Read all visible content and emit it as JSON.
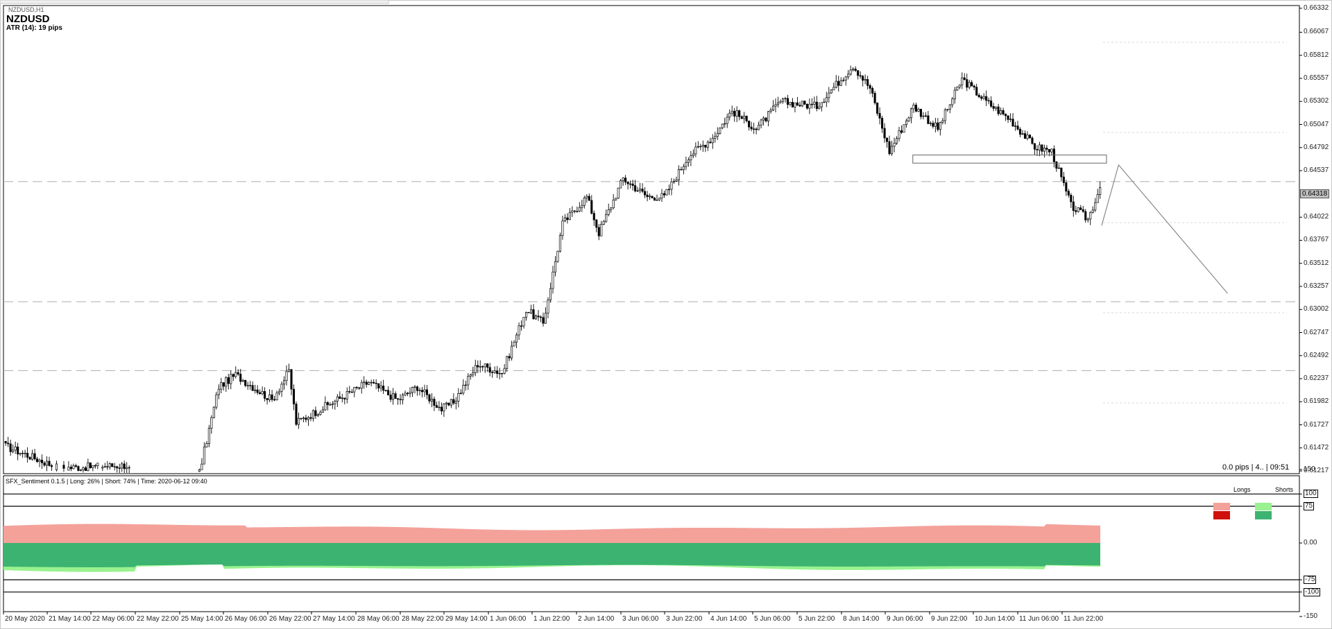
{
  "window": {
    "tab_title": "NZDUSD,H1"
  },
  "symbol": "NZDUSD",
  "atr_text": "ATR (14): 19 pips",
  "status_text": "0.0 pips | 4.. | 09:51",
  "current_price": "0.64318",
  "colors": {
    "bull": "#ffffff",
    "bear": "#000000",
    "longs_light": "#f4a19a",
    "longs_dark": "#d0100b",
    "shorts_light": "#99f28f",
    "shorts_dark": "#3cb371"
  },
  "indicator": {
    "title": "SFX_Sentiment 0.1.5 | Long: 26% | Short: 74% | Time: 2020-06-12 09:40",
    "legend": [
      {
        "label": "Longs"
      },
      {
        "label": "Shorts"
      }
    ],
    "y_ticks": [
      "150",
      "100",
      "75",
      "0.00",
      "-75",
      "-100",
      "-150"
    ],
    "levels": [
      "100",
      "75",
      "-75",
      "-100"
    ]
  },
  "chart_data": {
    "type": "candlestick",
    "title": "NZDUSD,H1",
    "y_ticks": [
      "0.66332",
      "0.66067",
      "0.65812",
      "0.65557",
      "0.65302",
      "0.65047",
      "0.64792",
      "0.64537",
      "0.64022",
      "0.63767",
      "0.63512",
      "0.63257",
      "0.63002",
      "0.62747",
      "0.62492",
      "0.62237",
      "0.61982",
      "0.61727",
      "0.61472",
      "0.61217"
    ],
    "ylim": [
      0.61187,
      0.66362
    ],
    "x_ticks": [
      "20 May 2020",
      "21 May 14:00",
      "22 May 06:00",
      "22 May 22:00",
      "25 May 14:00",
      "26 May 06:00",
      "26 May 22:00",
      "27 May 14:00",
      "28 May 06:00",
      "28 May 22:00",
      "29 May 14:00",
      "1 Jun 06:00",
      "1 Jun 22:00",
      "2 Jun 14:00",
      "3 Jun 06:00",
      "3 Jun 22:00",
      "4 Jun 14:00",
      "5 Jun 06:00",
      "5 Jun 22:00",
      "8 Jun 14:00",
      "9 Jun 06:00",
      "9 Jun 22:00",
      "10 Jun 14:00",
      "11 Jun 06:00",
      "11 Jun 22:00"
    ],
    "anchors": [
      [
        0,
        0.6149
      ],
      [
        22,
        0.6125
      ],
      [
        50,
        0.6128
      ],
      [
        52,
        0.6118
      ],
      [
        70,
        0.611
      ],
      [
        80,
        0.612
      ],
      [
        88,
        0.6215
      ],
      [
        95,
        0.6228
      ],
      [
        110,
        0.62
      ],
      [
        117,
        0.6232
      ],
      [
        120,
        0.6175
      ],
      [
        130,
        0.619
      ],
      [
        140,
        0.6205
      ],
      [
        150,
        0.622
      ],
      [
        162,
        0.62
      ],
      [
        170,
        0.6215
      ],
      [
        180,
        0.619
      ],
      [
        185,
        0.6198
      ],
      [
        195,
        0.624
      ],
      [
        205,
        0.623
      ],
      [
        215,
        0.63
      ],
      [
        222,
        0.6285
      ],
      [
        230,
        0.6395
      ],
      [
        240,
        0.6425
      ],
      [
        245,
        0.6385
      ],
      [
        255,
        0.6445
      ],
      [
        265,
        0.6425
      ],
      [
        272,
        0.6425
      ],
      [
        282,
        0.647
      ],
      [
        292,
        0.649
      ],
      [
        300,
        0.652
      ],
      [
        310,
        0.65
      ],
      [
        320,
        0.653
      ],
      [
        335,
        0.6525
      ],
      [
        350,
        0.657
      ],
      [
        357,
        0.6545
      ],
      [
        365,
        0.6475
      ],
      [
        375,
        0.6525
      ],
      [
        385,
        0.65
      ],
      [
        395,
        0.6555
      ],
      [
        405,
        0.653
      ],
      [
        415,
        0.651
      ],
      [
        425,
        0.648
      ],
      [
        432,
        0.6475
      ],
      [
        440,
        0.6415
      ],
      [
        447,
        0.64
      ],
      [
        452,
        0.6435
      ]
    ],
    "levels": [
      0.64416,
      0.63088,
      0.62326
    ],
    "rectangle": {
      "x1": 0.6462,
      "x2": 0.6471
    },
    "projection": [
      {
        "bar": 453,
        "price": 0.6393
      },
      {
        "bar": 460,
        "price": 0.646
      },
      {
        "bar": 505,
        "price": 0.6318
      }
    ],
    "sentiment": {
      "long_pct": 26,
      "short_pct": 74
    }
  }
}
